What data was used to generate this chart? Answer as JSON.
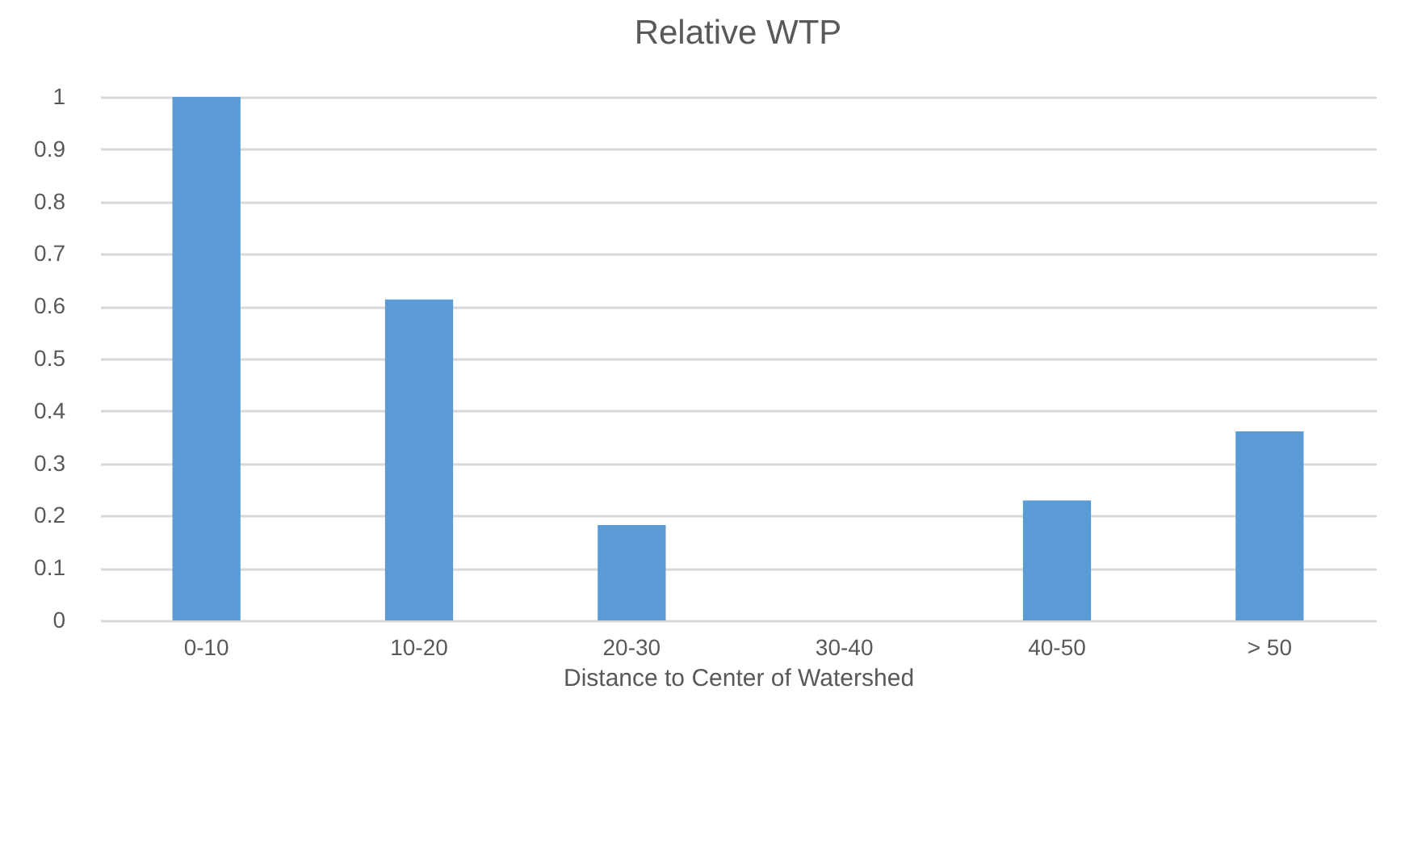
{
  "chart_data": {
    "type": "bar",
    "title": "Relative WTP",
    "xlabel": "Distance to Center of Watershed",
    "categories": [
      "0-10",
      "10-20",
      "20-30",
      "30-40",
      "40-50",
      "> 50"
    ],
    "values": [
      1,
      0.613,
      0.182,
      0,
      0.229,
      0.361
    ],
    "color": "#5b9bd5",
    "ylim": [
      0,
      1
    ],
    "yticks": [
      0,
      0.1,
      0.2,
      0.3,
      0.4,
      0.5,
      0.6,
      0.7,
      0.8,
      0.9,
      1
    ],
    "grid": "y"
  }
}
